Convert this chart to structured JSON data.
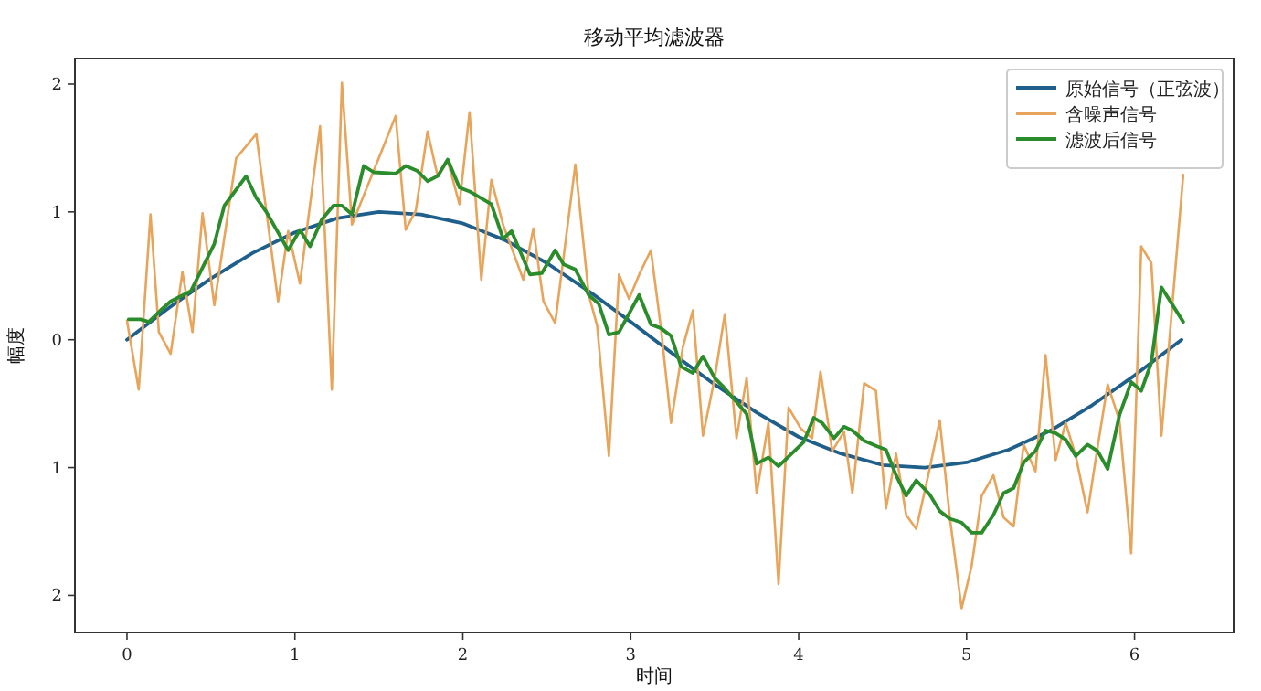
{
  "chart_data": {
    "type": "line",
    "title": "移动平均滤波器",
    "xlabel": "时间",
    "ylabel": "幅度",
    "xlim": [
      -0.31,
      6.59
    ],
    "ylim": [
      -2.29,
      2.2
    ],
    "xticks": [
      0,
      1,
      2,
      3,
      4,
      5,
      6
    ],
    "yticks": [
      {
        "value": -2,
        "label": "2"
      },
      {
        "value": -1,
        "label": "1"
      },
      0,
      1,
      2
    ],
    "legend": "top right",
    "grid": false,
    "line_style": "solid",
    "marker": "none",
    "series": [
      {
        "name": "原始信号（正弦波）",
        "color": "#1f5f8b",
        "x": [
          0,
          0.25,
          0.5,
          0.75,
          1.0,
          1.25,
          1.5,
          1.75,
          2.0,
          2.25,
          2.5,
          2.75,
          3.0,
          3.25,
          3.5,
          3.75,
          4.0,
          4.25,
          4.5,
          4.75,
          5.0,
          5.25,
          5.5,
          5.75,
          6.0,
          6.28
        ],
        "values": [
          0,
          0.25,
          0.48,
          0.68,
          0.84,
          0.95,
          1.0,
          0.98,
          0.91,
          0.78,
          0.6,
          0.38,
          0.14,
          -0.11,
          -0.35,
          -0.57,
          -0.76,
          -0.89,
          -0.98,
          -1.0,
          -0.96,
          -0.86,
          -0.71,
          -0.51,
          -0.28,
          0
        ]
      },
      {
        "name": "含噪声信号",
        "color": "#e8a45a",
        "x": [
          0,
          0.07,
          0.14,
          0.19,
          0.26,
          0.33,
          0.39,
          0.45,
          0.52,
          0.65,
          0.77,
          0.9,
          0.96,
          1.03,
          1.15,
          1.22,
          1.28,
          1.34,
          1.6,
          1.66,
          1.72,
          1.79,
          1.85,
          1.91,
          1.98,
          2.04,
          2.11,
          2.17,
          2.24,
          2.36,
          2.42,
          2.48,
          2.55,
          2.67,
          2.75,
          2.8,
          2.87,
          2.93,
          2.99,
          3.05,
          3.12,
          3.18,
          3.24,
          3.31,
          3.37,
          3.43,
          3.5,
          3.56,
          3.63,
          3.69,
          3.75,
          3.82,
          3.88,
          3.94,
          4.01,
          4.08,
          4.13,
          4.2,
          4.27,
          4.32,
          4.39,
          4.46,
          4.52,
          4.58,
          4.64,
          4.7,
          4.78,
          4.84,
          4.9,
          4.97,
          5.03,
          5.09,
          5.16,
          5.22,
          5.28,
          5.34,
          5.41,
          5.47,
          5.53,
          5.59,
          5.65,
          5.72,
          5.78,
          5.84,
          5.91,
          5.98,
          6.04,
          6.1,
          6.16,
          6.29
        ],
        "values": [
          0.15,
          -0.39,
          0.98,
          0.06,
          -0.11,
          0.53,
          0.06,
          0.99,
          0.27,
          1.42,
          1.61,
          0.3,
          0.85,
          0.44,
          1.67,
          -0.39,
          2.01,
          0.9,
          1.75,
          0.86,
          1.01,
          1.63,
          1.28,
          1.4,
          1.06,
          1.78,
          0.47,
          1.25,
          0.9,
          0.47,
          0.87,
          0.3,
          0.13,
          1.37,
          0.35,
          0.11,
          -0.91,
          0.51,
          0.32,
          0.51,
          0.7,
          0.09,
          -0.65,
          -0.06,
          0.23,
          -0.75,
          -0.3,
          0.2,
          -0.77,
          -0.3,
          -1.2,
          -0.65,
          -1.91,
          -0.53,
          -0.69,
          -0.77,
          -0.25,
          -0.87,
          -0.72,
          -1.2,
          -0.34,
          -0.4,
          -1.32,
          -0.89,
          -1.37,
          -1.48,
          -1.01,
          -0.63,
          -1.39,
          -2.1,
          -1.77,
          -1.22,
          -1.06,
          -1.39,
          -1.46,
          -0.82,
          -1.03,
          -0.12,
          -0.94,
          -0.65,
          -0.91,
          -1.35,
          -0.84,
          -0.35,
          -0.63,
          -1.67,
          0.73,
          0.6,
          -0.75,
          1.29
        ]
      },
      {
        "name": "滤波后信号",
        "color": "#2a8c2a",
        "x": [
          0.01,
          0.08,
          0.13,
          0.2,
          0.26,
          0.38,
          0.52,
          0.58,
          0.71,
          0.77,
          0.83,
          0.96,
          1.03,
          1.09,
          1.16,
          1.23,
          1.28,
          1.34,
          1.41,
          1.47,
          1.6,
          1.66,
          1.73,
          1.79,
          1.85,
          1.91,
          1.98,
          2.04,
          2.17,
          2.24,
          2.29,
          2.4,
          2.47,
          2.55,
          2.6,
          2.67,
          2.75,
          2.81,
          2.87,
          2.93,
          3.05,
          3.12,
          3.18,
          3.24,
          3.3,
          3.37,
          3.43,
          3.5,
          3.56,
          3.69,
          3.75,
          3.82,
          3.88,
          4.03,
          4.09,
          4.14,
          4.21,
          4.27,
          4.32,
          4.39,
          4.46,
          4.52,
          4.58,
          4.64,
          4.7,
          4.78,
          4.84,
          4.9,
          4.97,
          5.03,
          5.09,
          5.16,
          5.22,
          5.28,
          5.34,
          5.41,
          5.47,
          5.53,
          5.59,
          5.65,
          5.72,
          5.78,
          5.84,
          5.91,
          5.98,
          6.04,
          6.1,
          6.16,
          6.29
        ],
        "values": [
          0.16,
          0.16,
          0.14,
          0.23,
          0.3,
          0.38,
          0.75,
          1.05,
          1.28,
          1.11,
          1.0,
          0.7,
          0.86,
          0.73,
          0.94,
          1.05,
          1.05,
          0.98,
          1.36,
          1.31,
          1.3,
          1.36,
          1.32,
          1.24,
          1.28,
          1.41,
          1.19,
          1.16,
          1.06,
          0.79,
          0.85,
          0.51,
          0.52,
          0.7,
          0.59,
          0.55,
          0.35,
          0.28,
          0.04,
          0.06,
          0.35,
          0.12,
          0.09,
          0.03,
          -0.21,
          -0.26,
          -0.13,
          -0.3,
          -0.38,
          -0.58,
          -0.97,
          -0.92,
          -0.99,
          -0.8,
          -0.61,
          -0.65,
          -0.77,
          -0.68,
          -0.71,
          -0.79,
          -0.83,
          -0.86,
          -1.06,
          -1.22,
          -1.1,
          -1.21,
          -1.34,
          -1.4,
          -1.43,
          -1.51,
          -1.51,
          -1.37,
          -1.2,
          -1.16,
          -0.96,
          -0.87,
          -0.71,
          -0.73,
          -0.78,
          -0.91,
          -0.82,
          -0.87,
          -1.01,
          -0.59,
          -0.33,
          -0.4,
          -0.18,
          0.41,
          0.14
        ]
      }
    ]
  }
}
